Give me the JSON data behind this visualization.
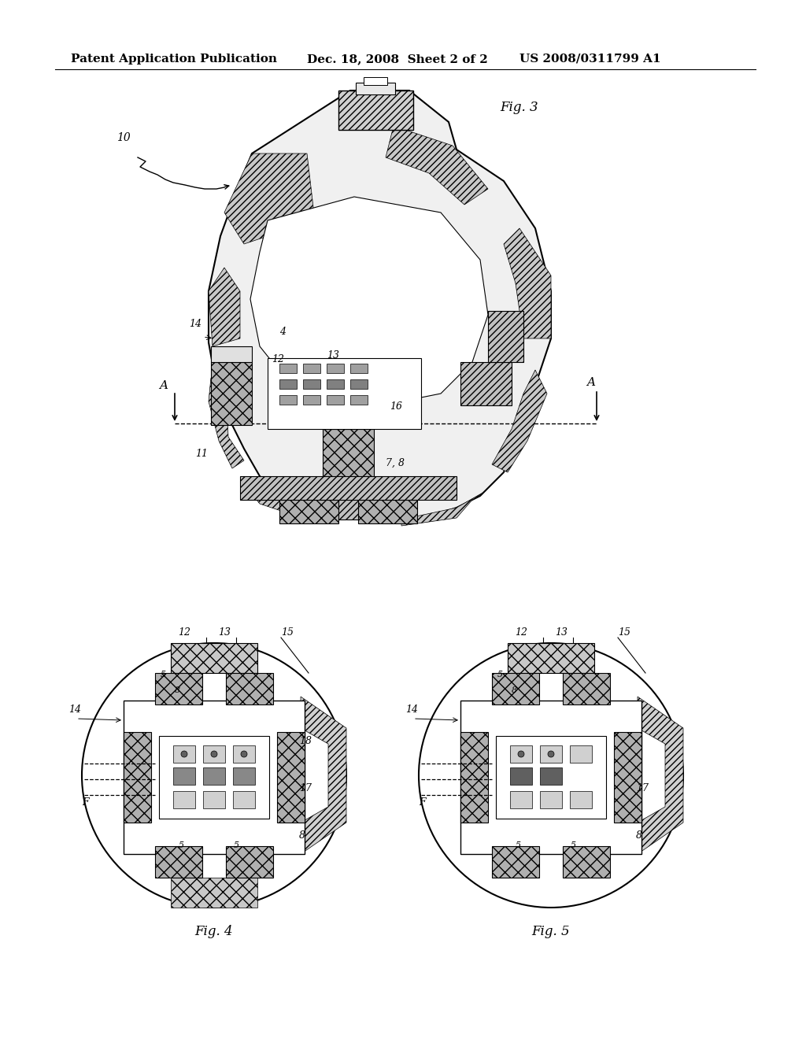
{
  "background_color": "#ffffff",
  "header_left": "Patent Application Publication",
  "header_center": "Dec. 18, 2008  Sheet 2 of 2",
  "header_right": "US 2008/0311799 A1",
  "fig3_label": "Fig. 3",
  "fig4_label": "Fig. 4",
  "fig5_label": "Fig. 5",
  "header_fontsize": 11,
  "label_fontsize": 12,
  "annotation_fontsize": 10
}
